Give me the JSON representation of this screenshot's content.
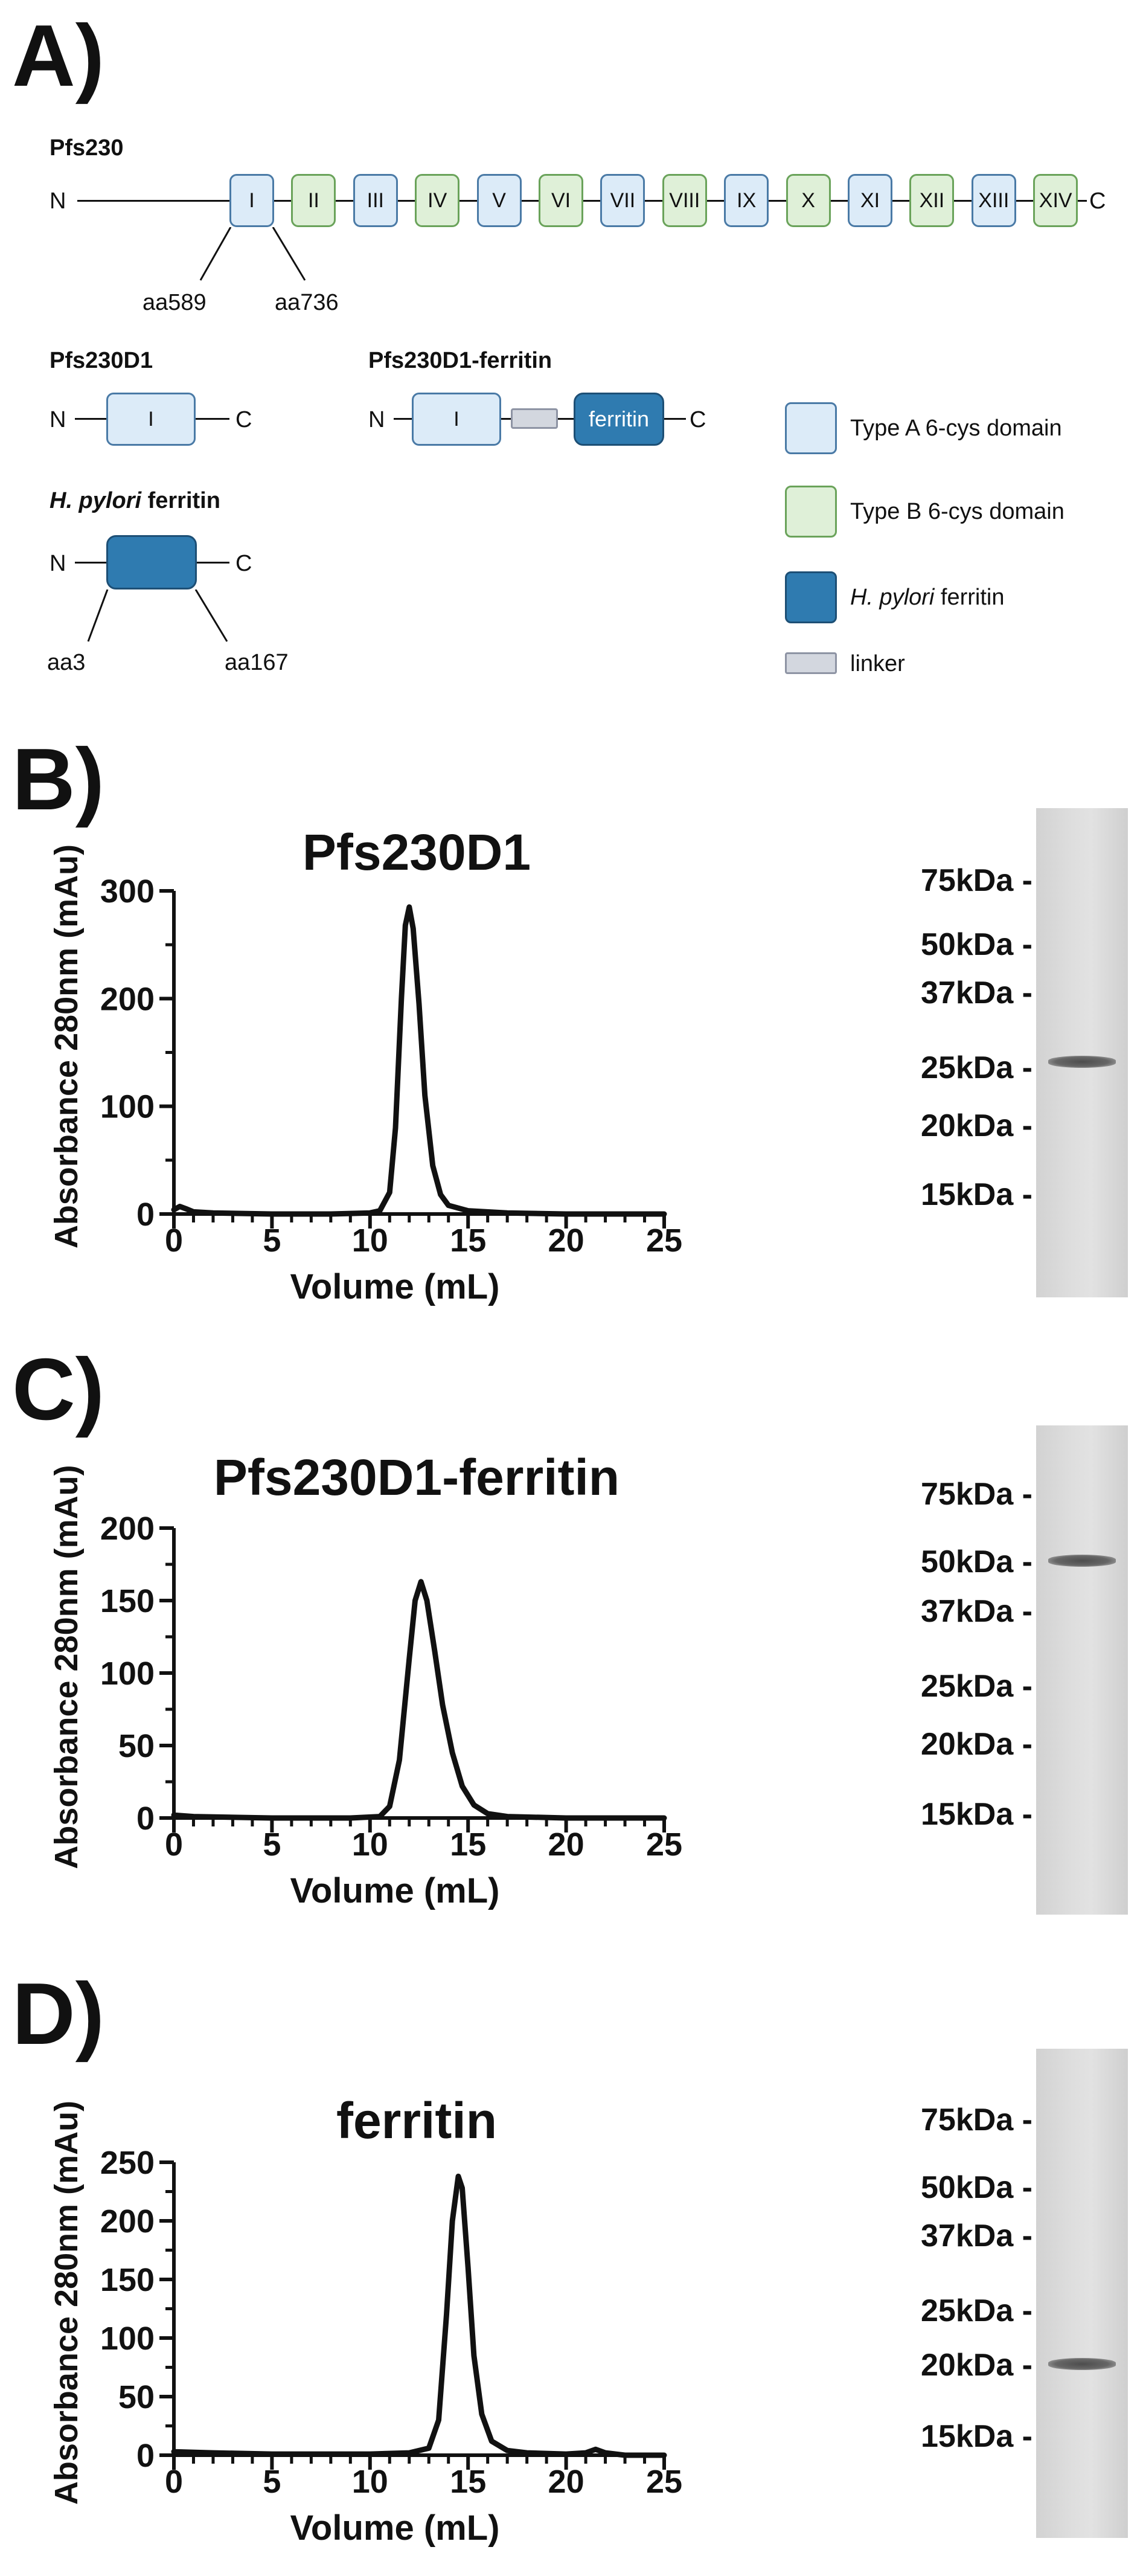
{
  "panels": {
    "A": "A)",
    "B": "B)",
    "C": "C)",
    "D": "D)"
  },
  "schematic": {
    "pfs230": {
      "title": "Pfs230",
      "n_label": "N",
      "c_label": "C",
      "domains": [
        {
          "label": "I",
          "type": "A"
        },
        {
          "label": "II",
          "type": "B"
        },
        {
          "label": "III",
          "type": "A"
        },
        {
          "label": "IV",
          "type": "B"
        },
        {
          "label": "V",
          "type": "A"
        },
        {
          "label": "VI",
          "type": "B"
        },
        {
          "label": "VII",
          "type": "A"
        },
        {
          "label": "VIII",
          "type": "B"
        },
        {
          "label": "IX",
          "type": "A"
        },
        {
          "label": "X",
          "type": "B"
        },
        {
          "label": "XI",
          "type": "A"
        },
        {
          "label": "XII",
          "type": "B"
        },
        {
          "label": "XIII",
          "type": "A"
        },
        {
          "label": "XIV",
          "type": "B"
        }
      ],
      "start_label": "aa589",
      "end_label": "aa736"
    },
    "pfs230d1": {
      "title": "Pfs230D1",
      "n_label": "N",
      "c_label": "C",
      "domain_label": "I"
    },
    "fusion": {
      "title": "Pfs230D1-ferritin",
      "n_label": "N",
      "c_label": "C",
      "domain_label": "I",
      "ferritin_label": "ferritin"
    },
    "ferritin": {
      "title_italic": "H. pylori",
      "title_rest": " ferritin",
      "n_label": "N",
      "c_label": "C",
      "start_label": "aa3",
      "end_label": "aa167"
    },
    "legend": {
      "type_a": "Type A 6-cys domain",
      "type_b": "Type B 6-cys domain",
      "ferritin_italic": "H. pylori",
      "ferritin_rest": " ferritin",
      "linker": "linker"
    },
    "colors": {
      "type_a_fill": "#dcebf8",
      "type_b_fill": "#dff0d8",
      "ferritin_fill": "#2f7bb0",
      "linker_fill": "#d3d7df"
    }
  },
  "chart_data": [
    {
      "type": "line",
      "title": "Pfs230D1",
      "xlabel": "Volume (mL)",
      "ylabel": "Absorbance 280nm (mAu)",
      "xlim": [
        0,
        25
      ],
      "ylim": [
        0,
        300
      ],
      "xticks": [
        0,
        5,
        10,
        15,
        20,
        25
      ],
      "yticks": [
        0,
        100,
        200,
        300
      ],
      "series": [
        {
          "name": "Pfs230D1",
          "x": [
            0,
            0.3,
            0.6,
            1,
            2,
            5,
            8,
            10,
            10.5,
            11,
            11.3,
            11.6,
            11.8,
            12.0,
            12.2,
            12.5,
            12.8,
            13.2,
            13.6,
            14,
            15,
            17,
            20,
            25
          ],
          "y": [
            4,
            7,
            5,
            2,
            1,
            0,
            0,
            1,
            3,
            20,
            80,
            200,
            268,
            285,
            265,
            195,
            110,
            45,
            18,
            8,
            3,
            1,
            0,
            0
          ]
        }
      ]
    },
    {
      "type": "line",
      "title": "Pfs230D1-ferritin",
      "xlabel": "Volume (mL)",
      "ylabel": "Absorbance 280nm (mAu)",
      "xlim": [
        0,
        25
      ],
      "ylim": [
        0,
        200
      ],
      "xticks": [
        0,
        5,
        10,
        15,
        20,
        25
      ],
      "yticks": [
        0,
        50,
        100,
        150,
        200
      ],
      "series": [
        {
          "name": "Pfs230D1-ferritin",
          "x": [
            0,
            1,
            5,
            9,
            10.5,
            11,
            11.5,
            12,
            12.3,
            12.6,
            12.9,
            13.3,
            13.7,
            14.2,
            14.7,
            15.3,
            16,
            17,
            20,
            25
          ],
          "y": [
            2,
            1,
            0,
            0,
            1,
            8,
            40,
            110,
            150,
            163,
            150,
            115,
            78,
            45,
            22,
            9,
            3,
            1,
            0,
            0
          ]
        }
      ]
    },
    {
      "type": "line",
      "title": "ferritin",
      "xlabel": "Volume (mL)",
      "ylabel": "Absorbance 280nm (mAu)",
      "xlim": [
        0,
        25
      ],
      "ylim": [
        0,
        250
      ],
      "xticks": [
        0,
        5,
        10,
        15,
        20,
        25
      ],
      "yticks": [
        0,
        50,
        100,
        150,
        200,
        250
      ],
      "series": [
        {
          "name": "ferritin",
          "x": [
            0,
            2,
            5,
            10,
            12,
            13,
            13.5,
            13.9,
            14.2,
            14.5,
            14.7,
            15.0,
            15.3,
            15.7,
            16.2,
            17,
            18,
            20,
            21,
            21.5,
            22,
            23,
            25
          ],
          "y": [
            3,
            2,
            1,
            1,
            2,
            6,
            30,
            120,
            200,
            238,
            228,
            160,
            85,
            35,
            12,
            4,
            2,
            1,
            2,
            5,
            2,
            0,
            0
          ]
        }
      ]
    }
  ],
  "gels": [
    {
      "markers": [
        "75kDa -",
        "50kDa -",
        "37kDa -",
        "25kDa -",
        "20kDa -",
        "15kDa -"
      ],
      "band_kda": 26
    },
    {
      "markers": [
        "75kDa -",
        "50kDa -",
        "37kDa -",
        "25kDa -",
        "20kDa -",
        "15kDa -"
      ],
      "band_kda": 48
    },
    {
      "markers": [
        "75kDa -",
        "50kDa -",
        "37kDa -",
        "25kDa -",
        "20kDa -",
        "15kDa -"
      ],
      "band_kda": 21
    }
  ]
}
